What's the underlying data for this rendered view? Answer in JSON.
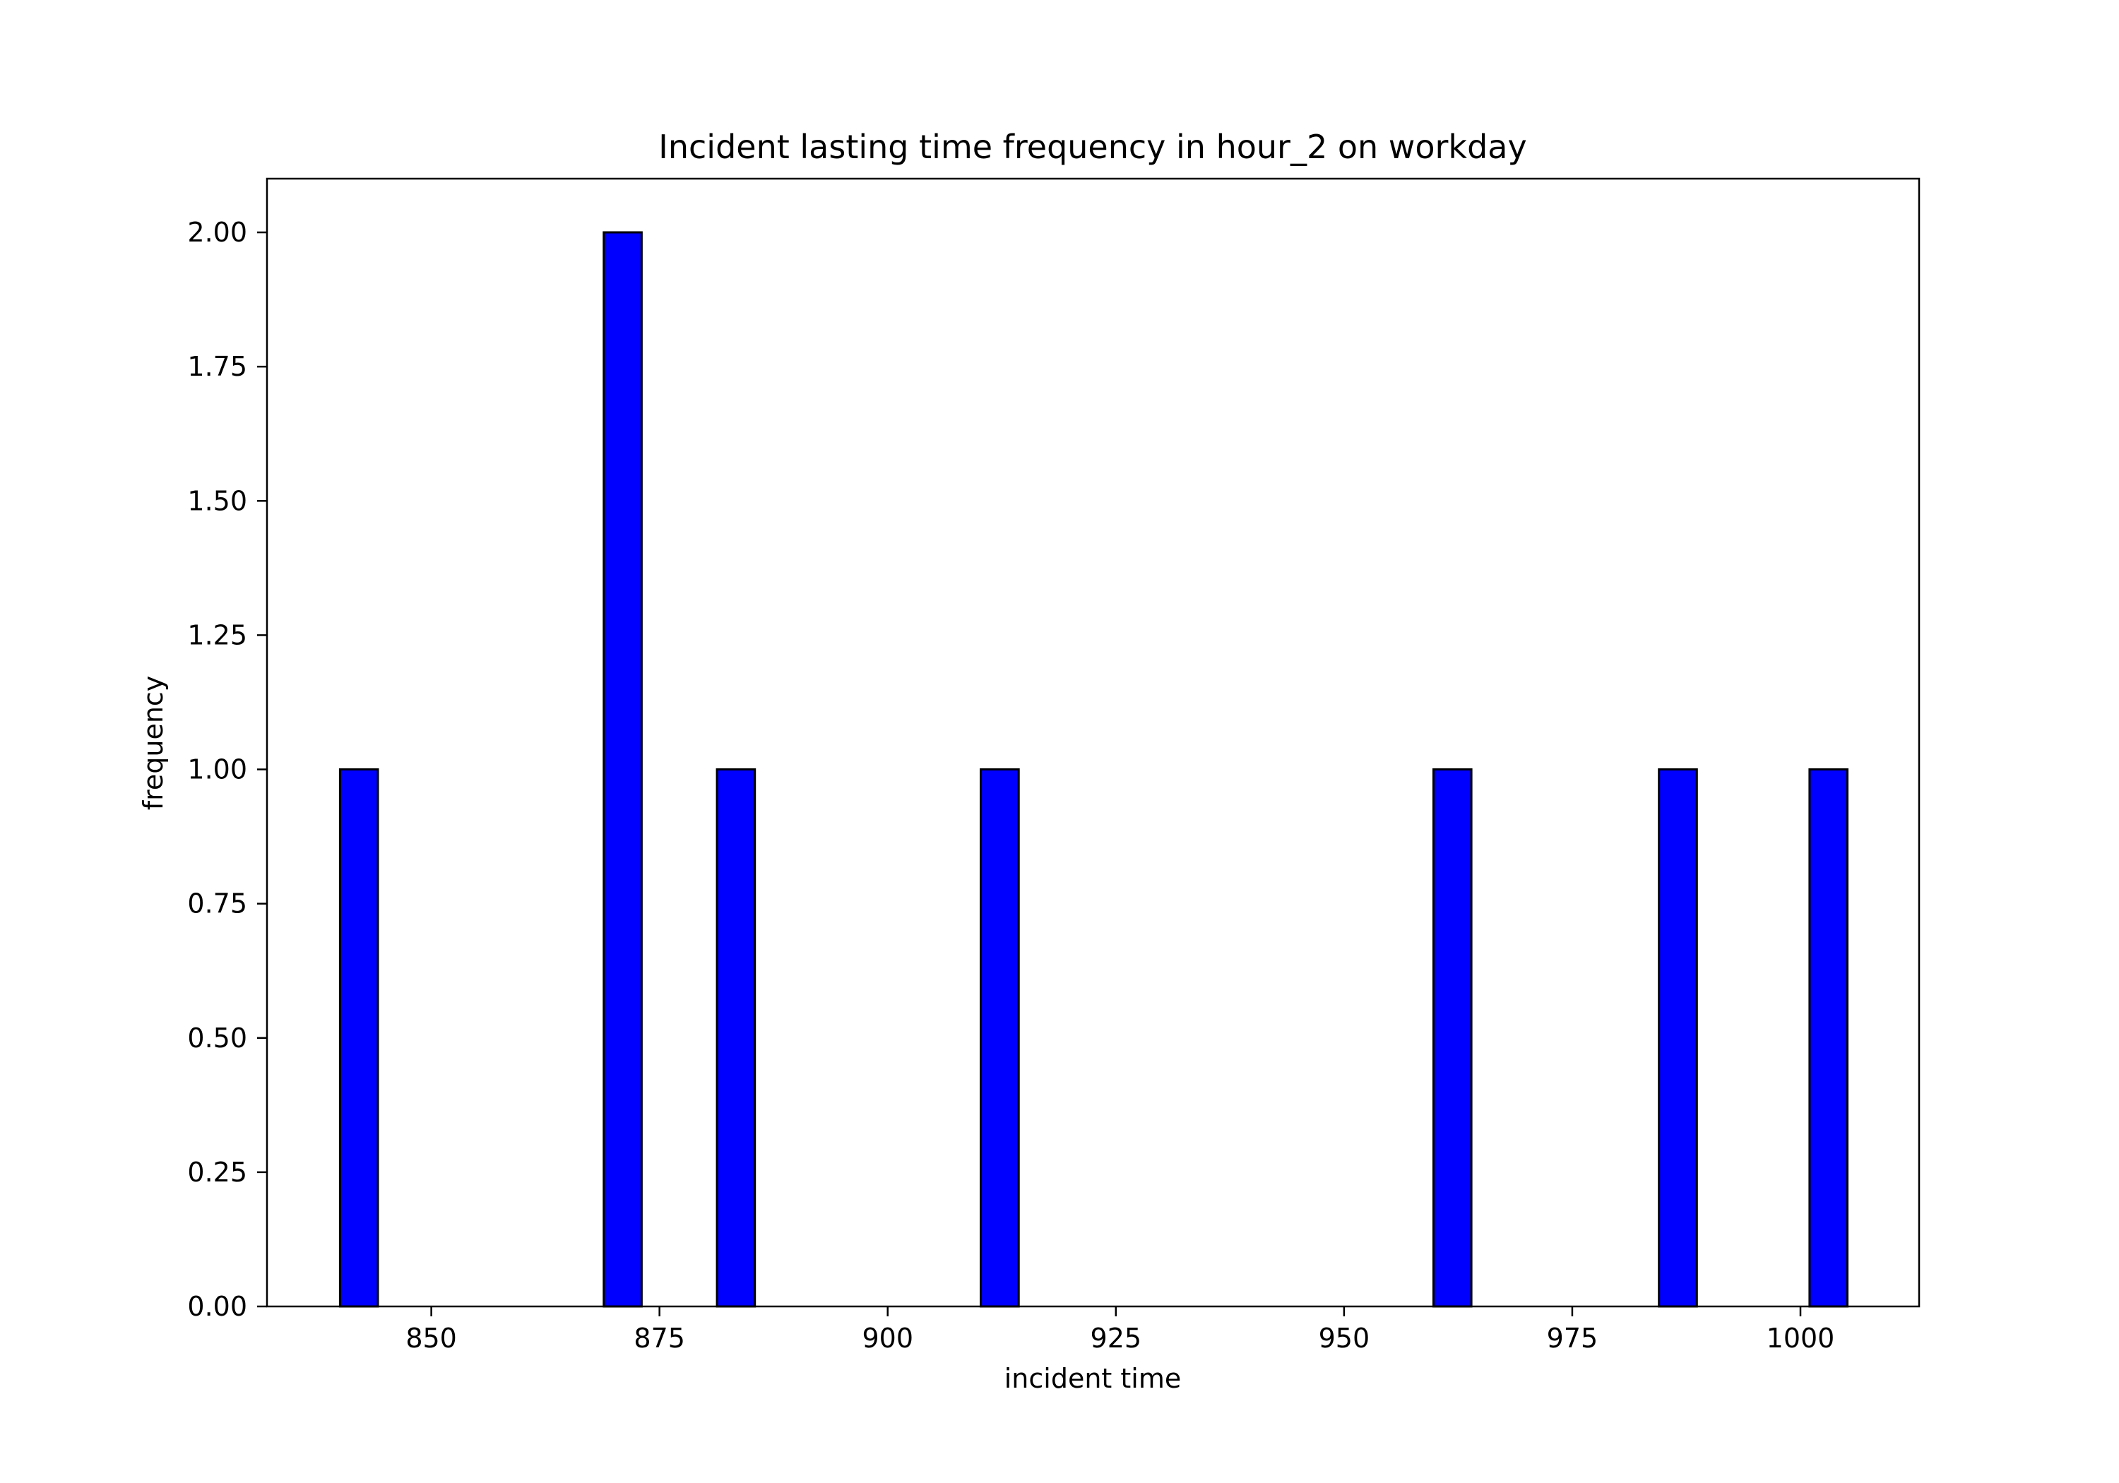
{
  "chart_data": {
    "type": "bar",
    "title": "Incident lasting time frequency in hour_2 on workday",
    "xlabel": "incident time",
    "ylabel": "frequency",
    "xlim": [
      832,
      1013
    ],
    "ylim": [
      0,
      2.1
    ],
    "x_ticks": [
      850,
      875,
      900,
      925,
      950,
      975,
      1000
    ],
    "y_ticks": [
      "0.00",
      "0.25",
      "0.50",
      "0.75",
      "1.00",
      "1.25",
      "1.50",
      "1.75",
      "2.00"
    ],
    "bin_width": 4.15,
    "bars": [
      {
        "x_start": 840.0,
        "value": 1
      },
      {
        "x_start": 868.9,
        "value": 2
      },
      {
        "x_start": 881.3,
        "value": 1
      },
      {
        "x_start": 910.2,
        "value": 1
      },
      {
        "x_start": 959.8,
        "value": 1
      },
      {
        "x_start": 984.5,
        "value": 1
      },
      {
        "x_start": 1001.0,
        "value": 1
      }
    ],
    "grid": false,
    "legend": "none",
    "colors": {
      "bar_fill": "#0000ff",
      "bar_edge": "#000000",
      "axes": "#000000",
      "background": "#ffffff"
    }
  }
}
